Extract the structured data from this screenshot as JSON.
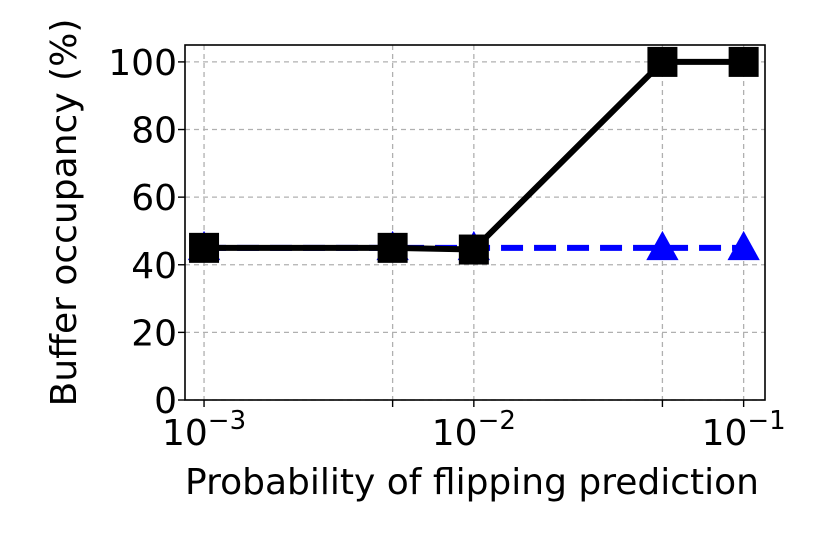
{
  "chart_data": {
    "type": "line",
    "title": "",
    "xlabel": "Probability of flipping prediction",
    "ylabel": "Buffer occupancy (%)",
    "xscale": "log",
    "xlim": [
      0.00085,
      0.12
    ],
    "ylim": [
      0,
      105
    ],
    "grid": true,
    "xticks": [
      {
        "value": 0.001,
        "base": "10",
        "exp": "−3"
      },
      {
        "value": 0.01,
        "base": "10",
        "exp": "−2"
      },
      {
        "value": 0.1,
        "base": "10",
        "exp": "−1"
      }
    ],
    "yticks": [
      0,
      20,
      40,
      60,
      80,
      100
    ],
    "series": [
      {
        "x": [
          0.001,
          0.005,
          0.01,
          0.05,
          0.1
        ],
        "y": [
          45,
          45,
          45,
          45,
          45
        ],
        "color": "#0000ff",
        "linestyle": "dashed",
        "marker": "triangle"
      },
      {
        "x": [
          0.001,
          0.005,
          0.01,
          0.05,
          0.1
        ],
        "y": [
          45,
          45,
          44.5,
          100,
          100
        ],
        "color": "#000000",
        "linestyle": "solid",
        "marker": "square"
      }
    ]
  }
}
